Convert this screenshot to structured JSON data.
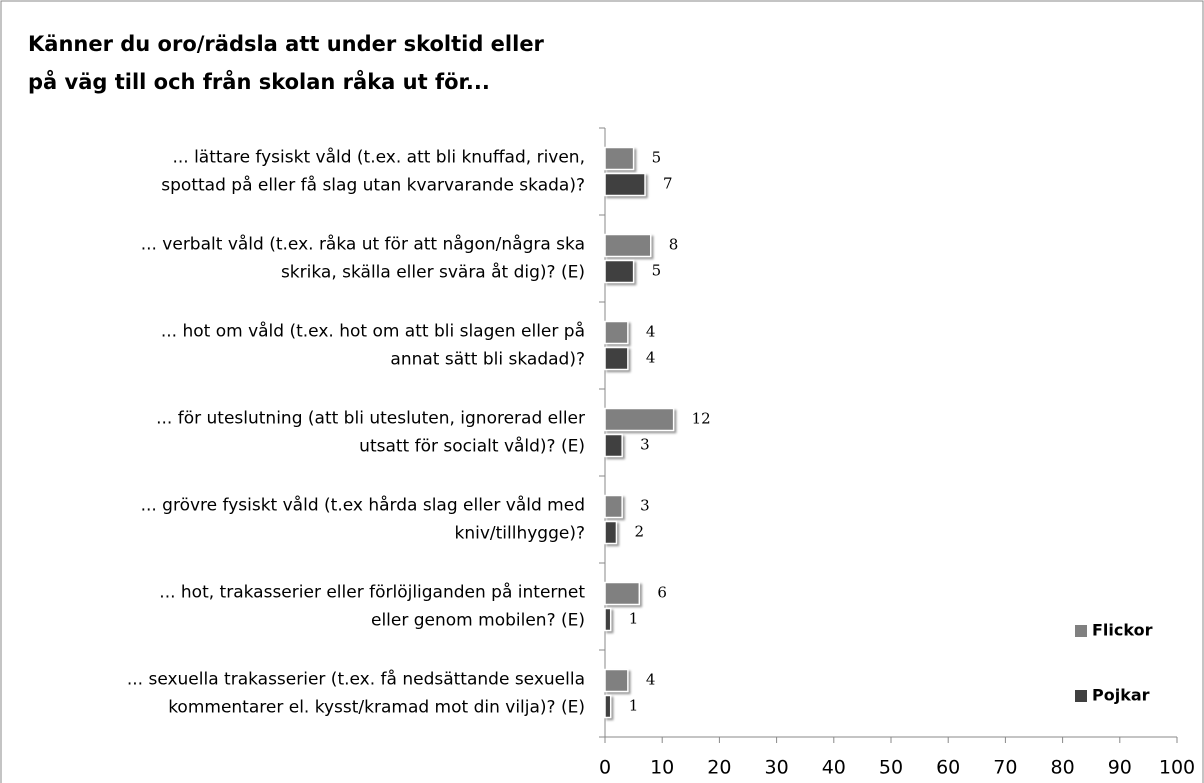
{
  "chart_data": {
    "type": "bar",
    "orientation": "horizontal",
    "title": [
      "Känner du oro/rädsla att under skoltid eller",
      "på väg till och från skolan råka ut för..."
    ],
    "categories": [
      [
        "... lättare fysiskt våld (t.ex. att bli knuffad, riven,",
        "spottad på eller få slag utan kvarvarande skada)?"
      ],
      [
        "... verbalt våld (t.ex. råka ut för att någon/några ska",
        "skrika, skälla eller svära åt dig)? (E)"
      ],
      [
        "... hot om våld (t.ex. hot om att bli slagen eller på",
        "annat sätt bli skadad)?"
      ],
      [
        "... för uteslutning (att bli utesluten, ignorerad eller",
        "utsatt för socialt våld)? (E)"
      ],
      [
        "... grövre fysiskt våld (t.ex hårda slag eller våld med",
        "kniv/tillhygge)?"
      ],
      [
        "... hot, trakasserier eller förlöjliganden på internet",
        "eller genom mobilen? (E)"
      ],
      [
        "... sexuella trakasserier (t.ex. få nedsättande sexuella",
        "kommentarer el. kysst/kramad mot din vilja)? (E)"
      ]
    ],
    "series": [
      {
        "name": "Flickor",
        "color": "#808080",
        "values": [
          5,
          8,
          4,
          12,
          3,
          6,
          4
        ]
      },
      {
        "name": "Pojkar",
        "color": "#404040",
        "values": [
          7,
          5,
          4,
          3,
          2,
          1,
          1
        ]
      }
    ],
    "xlim": [
      0,
      100
    ],
    "xticks": [
      0,
      10,
      20,
      30,
      40,
      50,
      60,
      70,
      80,
      90,
      100
    ],
    "legend": "right"
  }
}
